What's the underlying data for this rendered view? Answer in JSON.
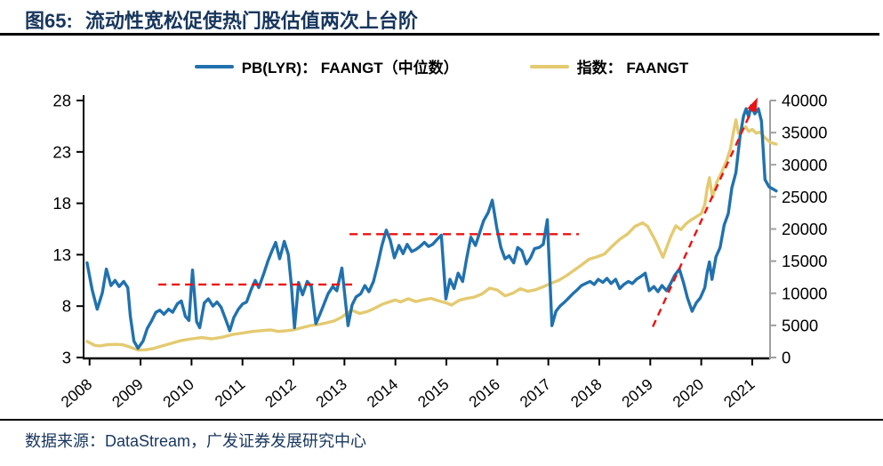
{
  "header": {
    "figure_no": "图65:",
    "title": "流动性宽松促使热门股估值两次上台阶"
  },
  "legend": [
    {
      "label": "PB(LYR)： FAANGT（中位数）",
      "color": "#2171AE"
    },
    {
      "label": "指数： FAANGT",
      "color": "#E4CA70"
    }
  ],
  "footer": {
    "source": "数据来源：DataStream，广发证券发展研究中心"
  },
  "colors": {
    "pb_line": "#2171AE",
    "index_line": "#E4CA70",
    "annotation_red": "#EE1111",
    "axis_black": "#000000",
    "axis_gray": "#A0A0A0",
    "title_navy": "#17365D"
  },
  "chart_data": {
    "type": "line",
    "title": "流动性宽松促使热门股估值两次上台阶",
    "xlabel": "",
    "ylabel_left": "",
    "ylabel_right": "",
    "grid": false,
    "legend_position": "top-center",
    "x_ticks": [
      2008,
      2009,
      2010,
      2011,
      2012,
      2013,
      2014,
      2015,
      2016,
      2017,
      2018,
      2019,
      2020,
      2021
    ],
    "left_axis": {
      "range": [
        3,
        28
      ],
      "label_values": [
        3,
        8,
        13,
        18,
        23,
        28
      ]
    },
    "right_axis": {
      "range": [
        0,
        40000
      ],
      "label_values": [
        0,
        5000,
        10000,
        15000,
        20000,
        25000,
        30000,
        35000,
        40000
      ]
    },
    "series": [
      {
        "name": "指数： FAANGT",
        "axis": "right",
        "color": "#E4CA70",
        "points": [
          [
            2007.95,
            2500
          ],
          [
            2008.1,
            1900
          ],
          [
            2008.2,
            1800
          ],
          [
            2008.35,
            2000
          ],
          [
            2008.5,
            2050
          ],
          [
            2008.65,
            2000
          ],
          [
            2008.8,
            1600
          ],
          [
            2008.95,
            1150
          ],
          [
            2009.1,
            1200
          ],
          [
            2009.25,
            1400
          ],
          [
            2009.4,
            1750
          ],
          [
            2009.6,
            2200
          ],
          [
            2009.8,
            2650
          ],
          [
            2010.0,
            2900
          ],
          [
            2010.2,
            3100
          ],
          [
            2010.4,
            2900
          ],
          [
            2010.6,
            3150
          ],
          [
            2010.8,
            3570
          ],
          [
            2011.0,
            3800
          ],
          [
            2011.2,
            4050
          ],
          [
            2011.4,
            4200
          ],
          [
            2011.55,
            4300
          ],
          [
            2011.7,
            4050
          ],
          [
            2011.85,
            4150
          ],
          [
            2012.0,
            4300
          ],
          [
            2012.2,
            4700
          ],
          [
            2012.35,
            5000
          ],
          [
            2012.5,
            5150
          ],
          [
            2012.65,
            5400
          ],
          [
            2012.8,
            5700
          ],
          [
            2012.95,
            6300
          ],
          [
            2013.05,
            6900
          ],
          [
            2013.15,
            7350
          ],
          [
            2013.3,
            6850
          ],
          [
            2013.45,
            7150
          ],
          [
            2013.6,
            7700
          ],
          [
            2013.75,
            8300
          ],
          [
            2013.9,
            8700
          ],
          [
            2014.0,
            8950
          ],
          [
            2014.1,
            8650
          ],
          [
            2014.25,
            9150
          ],
          [
            2014.4,
            8700
          ],
          [
            2014.55,
            9000
          ],
          [
            2014.7,
            9200
          ],
          [
            2014.85,
            8800
          ],
          [
            2015.0,
            8500
          ],
          [
            2015.1,
            8150
          ],
          [
            2015.25,
            8900
          ],
          [
            2015.4,
            9200
          ],
          [
            2015.55,
            9400
          ],
          [
            2015.7,
            9900
          ],
          [
            2015.85,
            10800
          ],
          [
            2016.0,
            10500
          ],
          [
            2016.15,
            9600
          ],
          [
            2016.3,
            10000
          ],
          [
            2016.45,
            10700
          ],
          [
            2016.6,
            10300
          ],
          [
            2016.75,
            10550
          ],
          [
            2016.9,
            11000
          ],
          [
            2017.05,
            11550
          ],
          [
            2017.2,
            12000
          ],
          [
            2017.35,
            12700
          ],
          [
            2017.5,
            13550
          ],
          [
            2017.65,
            14400
          ],
          [
            2017.8,
            15300
          ],
          [
            2017.95,
            15650
          ],
          [
            2018.1,
            16100
          ],
          [
            2018.25,
            17300
          ],
          [
            2018.4,
            18400
          ],
          [
            2018.55,
            19200
          ],
          [
            2018.7,
            20400
          ],
          [
            2018.85,
            20950
          ],
          [
            2018.95,
            20400
          ],
          [
            2019.1,
            18200
          ],
          [
            2019.25,
            15600
          ],
          [
            2019.4,
            18800
          ],
          [
            2019.5,
            20500
          ],
          [
            2019.6,
            19900
          ],
          [
            2019.7,
            20800
          ],
          [
            2019.8,
            21400
          ],
          [
            2019.9,
            21900
          ],
          [
            2020.0,
            22400
          ],
          [
            2020.07,
            23800
          ],
          [
            2020.12,
            26500
          ],
          [
            2020.16,
            28000
          ],
          [
            2020.22,
            24900
          ],
          [
            2020.3,
            27200
          ],
          [
            2020.4,
            28800
          ],
          [
            2020.5,
            30700
          ],
          [
            2020.57,
            32400
          ],
          [
            2020.63,
            35000
          ],
          [
            2020.68,
            37000
          ],
          [
            2020.73,
            34900
          ],
          [
            2020.8,
            35500
          ],
          [
            2020.87,
            35900
          ],
          [
            2020.93,
            35200
          ],
          [
            2021.0,
            35500
          ],
          [
            2021.08,
            34900
          ],
          [
            2021.15,
            35100
          ],
          [
            2021.25,
            34200
          ],
          [
            2021.35,
            33500
          ],
          [
            2021.47,
            33200
          ]
        ]
      },
      {
        "name": "PB(LYR)： FAANGT（中位数）",
        "axis": "left",
        "color": "#2171AE",
        "points": [
          [
            2007.95,
            12.2
          ],
          [
            2008.05,
            9.6
          ],
          [
            2008.15,
            7.7
          ],
          [
            2008.25,
            9.3
          ],
          [
            2008.33,
            11.6
          ],
          [
            2008.42,
            10.0
          ],
          [
            2008.5,
            10.5
          ],
          [
            2008.58,
            9.9
          ],
          [
            2008.67,
            10.4
          ],
          [
            2008.75,
            9.8
          ],
          [
            2008.8,
            7.0
          ],
          [
            2008.87,
            4.6
          ],
          [
            2008.95,
            3.9
          ],
          [
            2009.05,
            4.6
          ],
          [
            2009.13,
            5.8
          ],
          [
            2009.22,
            6.6
          ],
          [
            2009.3,
            7.4
          ],
          [
            2009.38,
            7.6
          ],
          [
            2009.46,
            7.2
          ],
          [
            2009.55,
            7.7
          ],
          [
            2009.63,
            7.4
          ],
          [
            2009.72,
            8.2
          ],
          [
            2009.8,
            8.5
          ],
          [
            2009.88,
            7.0
          ],
          [
            2009.95,
            6.6
          ],
          [
            2010.02,
            11.5
          ],
          [
            2010.1,
            6.5
          ],
          [
            2010.16,
            5.9
          ],
          [
            2010.25,
            8.3
          ],
          [
            2010.33,
            8.7
          ],
          [
            2010.42,
            8.0
          ],
          [
            2010.5,
            8.4
          ],
          [
            2010.58,
            7.9
          ],
          [
            2010.67,
            6.7
          ],
          [
            2010.75,
            5.6
          ],
          [
            2010.83,
            6.9
          ],
          [
            2010.92,
            7.7
          ],
          [
            2011.0,
            8.2
          ],
          [
            2011.08,
            8.4
          ],
          [
            2011.17,
            9.6
          ],
          [
            2011.25,
            10.5
          ],
          [
            2011.32,
            9.8
          ],
          [
            2011.42,
            11.2
          ],
          [
            2011.5,
            12.4
          ],
          [
            2011.58,
            13.4
          ],
          [
            2011.65,
            14.2
          ],
          [
            2011.73,
            12.6
          ],
          [
            2011.82,
            14.3
          ],
          [
            2011.9,
            13.0
          ],
          [
            2011.96,
            10.0
          ],
          [
            2012.02,
            5.9
          ],
          [
            2012.1,
            10.3
          ],
          [
            2012.18,
            9.1
          ],
          [
            2012.27,
            10.4
          ],
          [
            2012.35,
            9.9
          ],
          [
            2012.44,
            6.3
          ],
          [
            2012.52,
            7.2
          ],
          [
            2012.6,
            8.2
          ],
          [
            2012.68,
            9.2
          ],
          [
            2012.77,
            9.9
          ],
          [
            2012.85,
            9.5
          ],
          [
            2012.95,
            11.7
          ],
          [
            2013.07,
            6.1
          ],
          [
            2013.15,
            8.1
          ],
          [
            2013.23,
            8.9
          ],
          [
            2013.32,
            9.2
          ],
          [
            2013.4,
            10.0
          ],
          [
            2013.48,
            9.4
          ],
          [
            2013.57,
            10.4
          ],
          [
            2013.65,
            12.0
          ],
          [
            2013.73,
            13.8
          ],
          [
            2013.82,
            15.4
          ],
          [
            2013.9,
            14.4
          ],
          [
            2013.98,
            12.7
          ],
          [
            2014.07,
            13.9
          ],
          [
            2014.15,
            13.1
          ],
          [
            2014.23,
            14.0
          ],
          [
            2014.32,
            13.3
          ],
          [
            2014.4,
            13.5
          ],
          [
            2014.48,
            13.8
          ],
          [
            2014.57,
            14.2
          ],
          [
            2014.65,
            13.8
          ],
          [
            2014.73,
            14.0
          ],
          [
            2014.82,
            14.5
          ],
          [
            2014.9,
            14.9
          ],
          [
            2014.99,
            8.7
          ],
          [
            2015.07,
            10.6
          ],
          [
            2015.15,
            9.7
          ],
          [
            2015.23,
            11.2
          ],
          [
            2015.32,
            10.4
          ],
          [
            2015.4,
            12.7
          ],
          [
            2015.48,
            14.7
          ],
          [
            2015.57,
            13.9
          ],
          [
            2015.65,
            15.1
          ],
          [
            2015.73,
            16.3
          ],
          [
            2015.82,
            17.1
          ],
          [
            2015.9,
            18.3
          ],
          [
            2015.99,
            15.6
          ],
          [
            2016.07,
            13.7
          ],
          [
            2016.15,
            12.6
          ],
          [
            2016.23,
            12.9
          ],
          [
            2016.32,
            12.2
          ],
          [
            2016.4,
            13.7
          ],
          [
            2016.48,
            13.4
          ],
          [
            2016.57,
            12.1
          ],
          [
            2016.65,
            12.7
          ],
          [
            2016.73,
            13.6
          ],
          [
            2016.82,
            13.7
          ],
          [
            2016.9,
            14.0
          ],
          [
            2016.98,
            16.4
          ],
          [
            2017.07,
            6.1
          ],
          [
            2017.15,
            7.5
          ],
          [
            2017.23,
            8.0
          ],
          [
            2017.32,
            8.4
          ],
          [
            2017.4,
            8.8
          ],
          [
            2017.48,
            9.2
          ],
          [
            2017.57,
            9.6
          ],
          [
            2017.65,
            10.0
          ],
          [
            2017.73,
            10.2
          ],
          [
            2017.82,
            10.4
          ],
          [
            2017.9,
            10.1
          ],
          [
            2017.98,
            10.6
          ],
          [
            2018.07,
            10.3
          ],
          [
            2018.15,
            10.7
          ],
          [
            2018.23,
            10.2
          ],
          [
            2018.32,
            10.6
          ],
          [
            2018.4,
            9.7
          ],
          [
            2018.48,
            10.1
          ],
          [
            2018.57,
            10.4
          ],
          [
            2018.65,
            10.2
          ],
          [
            2018.73,
            10.6
          ],
          [
            2018.82,
            10.9
          ],
          [
            2018.9,
            11.2
          ],
          [
            2018.98,
            9.5
          ],
          [
            2019.07,
            9.9
          ],
          [
            2019.15,
            9.4
          ],
          [
            2019.23,
            10.0
          ],
          [
            2019.32,
            9.5
          ],
          [
            2019.4,
            10.2
          ],
          [
            2019.48,
            11.0
          ],
          [
            2019.57,
            11.6
          ],
          [
            2019.65,
            10.3
          ],
          [
            2019.73,
            8.8
          ],
          [
            2019.82,
            7.5
          ],
          [
            2019.9,
            8.3
          ],
          [
            2019.98,
            8.8
          ],
          [
            2020.07,
            9.8
          ],
          [
            2020.12,
            11.4
          ],
          [
            2020.16,
            12.3
          ],
          [
            2020.21,
            10.6
          ],
          [
            2020.29,
            12.8
          ],
          [
            2020.37,
            13.7
          ],
          [
            2020.45,
            15.9
          ],
          [
            2020.53,
            17.0
          ],
          [
            2020.6,
            19.5
          ],
          [
            2020.68,
            21.0
          ],
          [
            2020.76,
            24.5
          ],
          [
            2020.83,
            26.5
          ],
          [
            2020.88,
            27.2
          ],
          [
            2020.93,
            26.4
          ],
          [
            2020.98,
            27.5
          ],
          [
            2021.05,
            26.7
          ],
          [
            2021.12,
            27.2
          ],
          [
            2021.18,
            26.0
          ],
          [
            2021.25,
            20.3
          ],
          [
            2021.33,
            19.6
          ],
          [
            2021.4,
            19.4
          ],
          [
            2021.47,
            19.2
          ]
        ]
      }
    ],
    "annotations": {
      "dashed_levels": [
        {
          "from": 2009.35,
          "to": 2013.15,
          "value": 10.1
        },
        {
          "from": 2013.1,
          "to": 2017.6,
          "value": 15.0
        }
      ],
      "trend_arrow": {
        "from": [
          2019.05,
          6.0
        ],
        "to": [
          2021.07,
          27.9
        ]
      },
      "color": "#EE1111"
    }
  }
}
